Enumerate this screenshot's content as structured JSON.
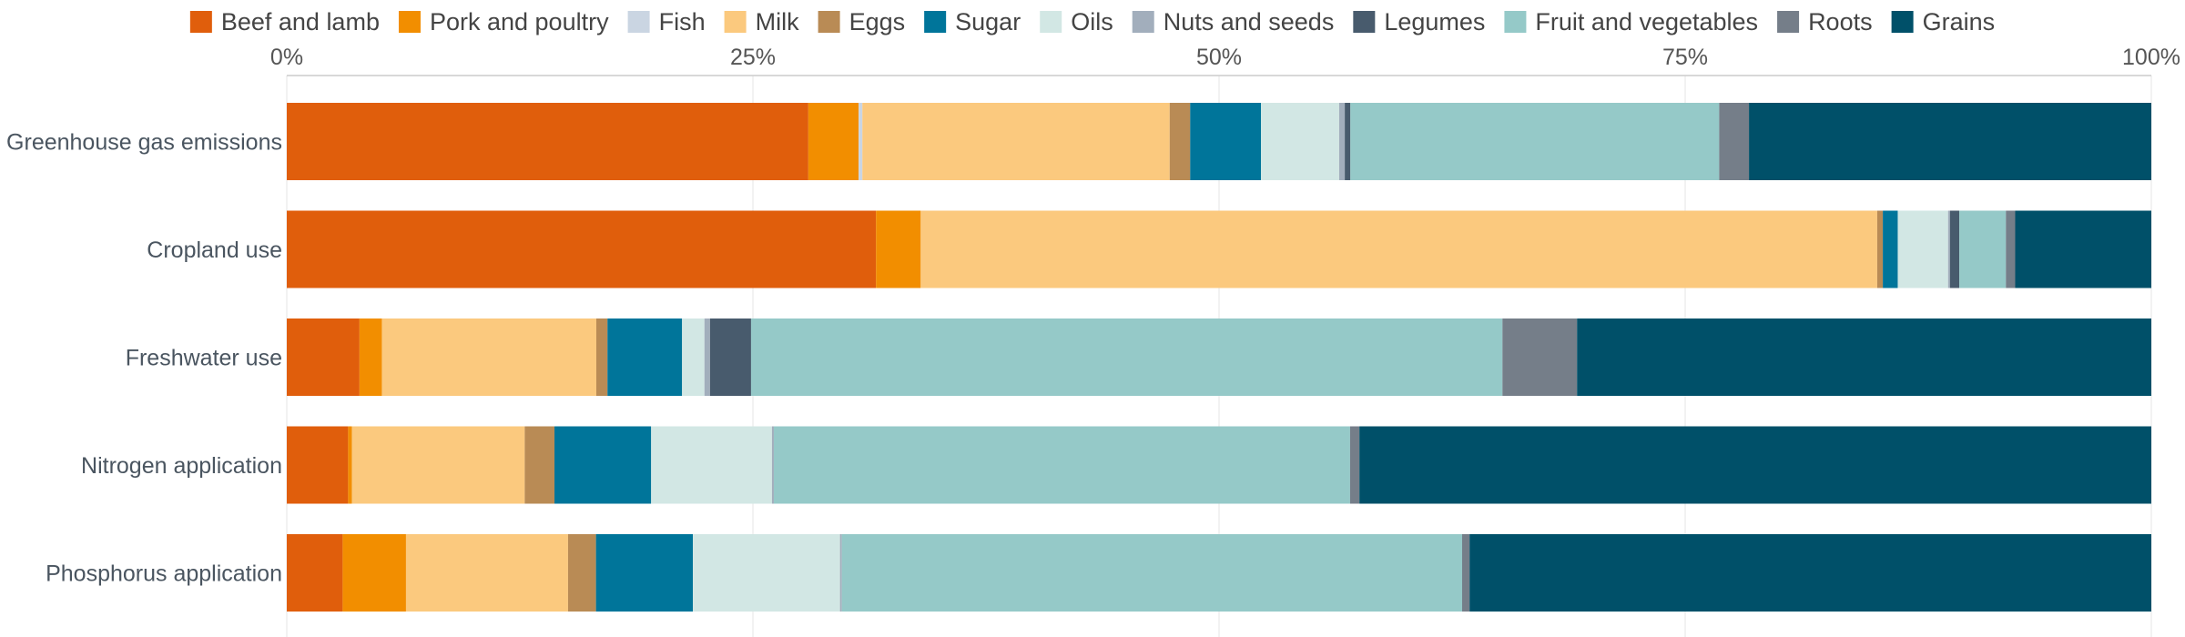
{
  "chart_data": {
    "type": "bar",
    "orientation": "horizontal",
    "stacked": true,
    "normalized": true,
    "title": "",
    "xlabel": "",
    "ylabel": "",
    "xlim": [
      0,
      100
    ],
    "x_ticks": [
      0,
      25,
      50,
      75,
      100
    ],
    "x_tick_labels": [
      "0%",
      "25%",
      "50%",
      "75%",
      "100%"
    ],
    "x_axis_position": "top",
    "grid": true,
    "legend_position": "top",
    "categories": [
      "Greenhouse gas emissions",
      "Cropland use",
      "Freshwater use",
      "Nitrogen application",
      "Phosphorus application"
    ],
    "series": [
      {
        "name": "Beef and lamb",
        "color": "#e05e0c",
        "values": [
          28.0,
          31.6,
          3.9,
          3.3,
          3.0
        ]
      },
      {
        "name": "Pork and poultry",
        "color": "#f28e00",
        "values": [
          2.7,
          2.4,
          1.2,
          0.2,
          3.4
        ]
      },
      {
        "name": "Fish",
        "color": "#cad5e2",
        "values": [
          0.2,
          0.0,
          0.0,
          0.0,
          0.0
        ]
      },
      {
        "name": "Milk",
        "color": "#fbc97e",
        "values": [
          16.5,
          51.3,
          11.5,
          9.3,
          8.7
        ]
      },
      {
        "name": "Eggs",
        "color": "#b98b55",
        "values": [
          1.1,
          0.3,
          0.6,
          1.6,
          1.5
        ]
      },
      {
        "name": "Sugar",
        "color": "#00759a",
        "values": [
          3.8,
          0.8,
          4.0,
          5.2,
          5.2
        ]
      },
      {
        "name": "Oils",
        "color": "#d2e7e4",
        "values": [
          4.2,
          2.7,
          1.2,
          6.5,
          7.9
        ]
      },
      {
        "name": "Nuts and seeds",
        "color": "#a2aebc",
        "values": [
          0.3,
          0.1,
          0.3,
          0.1,
          0.1
        ]
      },
      {
        "name": "Legumes",
        "color": "#485b6d",
        "values": [
          0.3,
          0.5,
          2.2,
          0.0,
          0.0
        ]
      },
      {
        "name": "Fruit and vegetables",
        "color": "#95c9c8",
        "values": [
          19.8,
          2.5,
          40.3,
          31.0,
          33.3
        ]
      },
      {
        "name": "Roots",
        "color": "#757e89",
        "values": [
          1.6,
          0.5,
          4.0,
          0.5,
          0.4
        ]
      },
      {
        "name": "Grains",
        "color": "#005069",
        "values": [
          21.6,
          7.3,
          30.8,
          42.6,
          36.6
        ]
      }
    ]
  }
}
